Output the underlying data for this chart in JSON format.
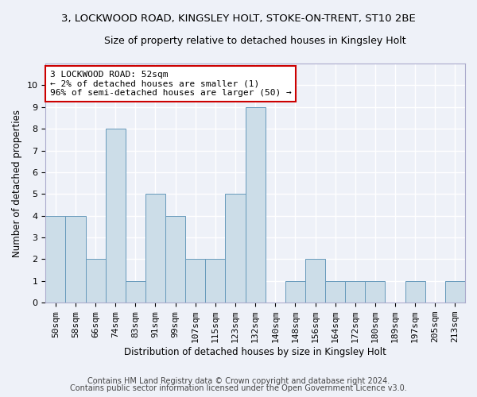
{
  "title_line1": "3, LOCKWOOD ROAD, KINGSLEY HOLT, STOKE-ON-TRENT, ST10 2BE",
  "title_line2": "Size of property relative to detached houses in Kingsley Holt",
  "xlabel": "Distribution of detached houses by size in Kingsley Holt",
  "ylabel": "Number of detached properties",
  "categories": [
    "50sqm",
    "58sqm",
    "66sqm",
    "74sqm",
    "83sqm",
    "91sqm",
    "99sqm",
    "107sqm",
    "115sqm",
    "123sqm",
    "132sqm",
    "140sqm",
    "148sqm",
    "156sqm",
    "164sqm",
    "172sqm",
    "180sqm",
    "189sqm",
    "197sqm",
    "205sqm",
    "213sqm"
  ],
  "values": [
    4,
    4,
    2,
    8,
    1,
    5,
    4,
    2,
    2,
    5,
    9,
    0,
    1,
    2,
    1,
    1,
    1,
    0,
    1,
    0,
    1
  ],
  "bar_color": "#ccdde8",
  "bar_edge_color": "#6699bb",
  "annotation_box_text": "3 LOCKWOOD ROAD: 52sqm\n← 2% of detached houses are smaller (1)\n96% of semi-detached houses are larger (50) →",
  "annotation_box_color": "#ffffff",
  "annotation_box_edge_color": "#cc0000",
  "ylim": [
    0,
    11
  ],
  "yticks": [
    0,
    1,
    2,
    3,
    4,
    5,
    6,
    7,
    8,
    9,
    10,
    11
  ],
  "background_color": "#eef1f8",
  "grid_color": "#ffffff",
  "footer_line1": "Contains HM Land Registry data © Crown copyright and database right 2024.",
  "footer_line2": "Contains public sector information licensed under the Open Government Licence v3.0.",
  "title_fontsize": 9.5,
  "subtitle_fontsize": 9.0,
  "annotation_fontsize": 8.0,
  "xlabel_fontsize": 8.5,
  "ylabel_fontsize": 8.5,
  "tick_fontsize": 8.0,
  "footer_fontsize": 7.0
}
